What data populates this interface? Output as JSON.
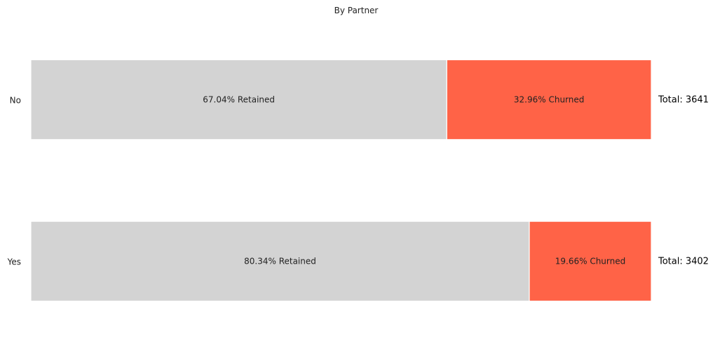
{
  "chart_data": {
    "type": "bar",
    "orientation": "horizontal",
    "stacked": true,
    "title": "By Partner",
    "categories": [
      "No",
      "Yes"
    ],
    "series": [
      {
        "name": "Retained",
        "values": [
          67.04,
          80.34
        ],
        "color": "#d3d3d3",
        "labels": [
          "67.04% Retained",
          "80.34% Retained"
        ]
      },
      {
        "name": "Churned",
        "values": [
          32.96,
          19.66
        ],
        "color": "#ff6347",
        "labels": [
          "32.96% Churned",
          "19.66% Churned"
        ]
      }
    ],
    "totals": [
      "Total: 3641",
      "Total: 3402"
    ],
    "xlim": [
      0,
      100
    ],
    "grid": false,
    "legend": "none"
  }
}
